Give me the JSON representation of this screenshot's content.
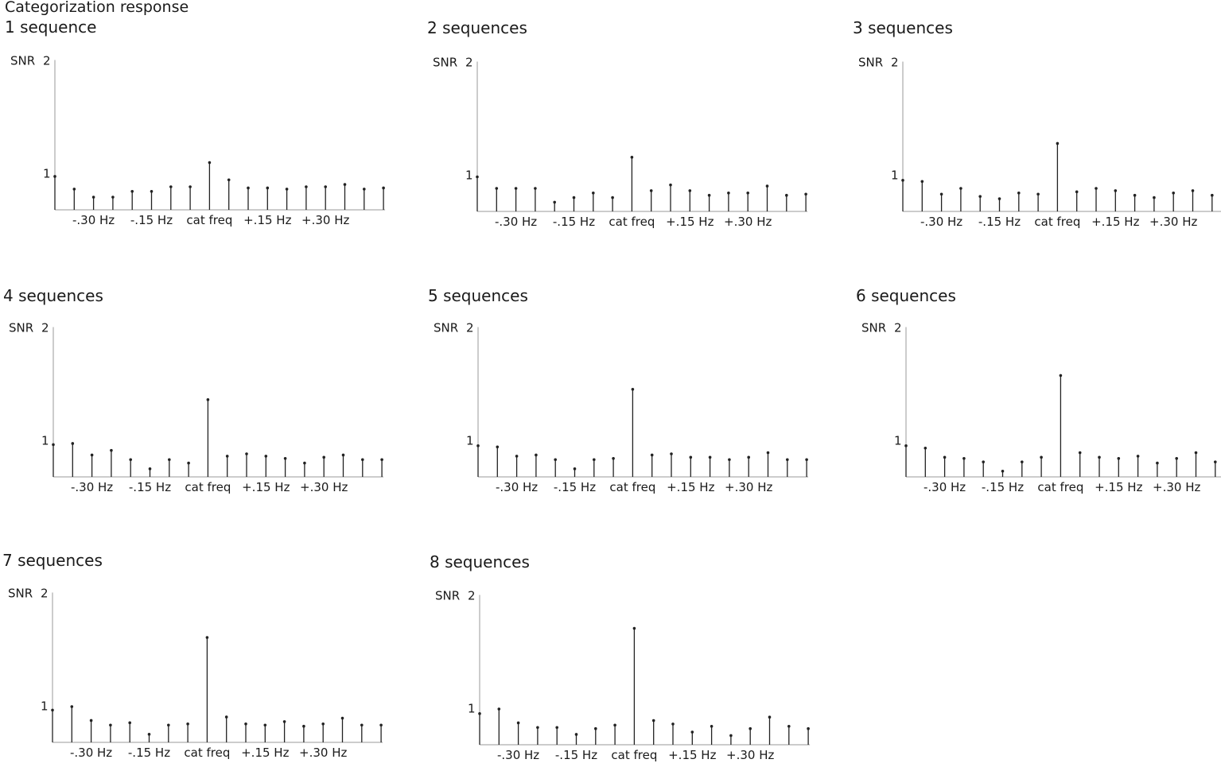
{
  "title": "Categorization response",
  "tick_labels": [
    "-.30 Hz",
    "-.15 Hz",
    "cat freq",
    "+.15 Hz",
    "+.30 Hz"
  ],
  "chart_data": [
    {
      "type": "bar",
      "title": "1 sequence",
      "ylabel": "SNR",
      "y_ticks": [
        "1",
        "2"
      ],
      "ylim": [
        0.7,
        2
      ],
      "values": [
        0.99,
        0.88,
        0.81,
        0.81,
        0.86,
        0.86,
        0.9,
        0.9,
        1.11,
        0.96,
        0.89,
        0.89,
        0.88,
        0.9,
        0.9,
        0.92,
        0.88,
        0.89
      ]
    },
    {
      "type": "bar",
      "title": "2 sequences",
      "ylabel": "SNR",
      "y_ticks": [
        "1",
        "2"
      ],
      "ylim": [
        0.7,
        2
      ],
      "values": [
        1.0,
        0.9,
        0.9,
        0.9,
        0.78,
        0.82,
        0.86,
        0.82,
        1.17,
        0.88,
        0.93,
        0.88,
        0.84,
        0.86,
        0.86,
        0.92,
        0.84,
        0.85
      ]
    },
    {
      "type": "bar",
      "title": "3 sequences",
      "ylabel": "SNR",
      "y_ticks": [
        "1",
        "2"
      ],
      "ylim": [
        0.7,
        2
      ],
      "values": [
        0.97,
        0.96,
        0.85,
        0.9,
        0.83,
        0.81,
        0.86,
        0.85,
        1.29,
        0.87,
        0.9,
        0.88,
        0.84,
        0.82,
        0.86,
        0.88,
        0.84,
        0.85
      ]
    },
    {
      "type": "bar",
      "title": "4 sequences",
      "ylabel": "SNR",
      "y_ticks": [
        "1",
        "2"
      ],
      "ylim": [
        0.7,
        2
      ],
      "values": [
        0.98,
        0.99,
        0.89,
        0.93,
        0.85,
        0.77,
        0.85,
        0.82,
        1.37,
        0.88,
        0.9,
        0.88,
        0.86,
        0.82,
        0.87,
        0.89,
        0.85,
        0.85
      ]
    },
    {
      "type": "bar",
      "title": "5 sequences",
      "ylabel": "SNR",
      "y_ticks": [
        "1",
        "2"
      ],
      "ylim": [
        0.7,
        2
      ],
      "values": [
        0.97,
        0.96,
        0.88,
        0.89,
        0.85,
        0.77,
        0.85,
        0.86,
        1.46,
        0.89,
        0.9,
        0.87,
        0.87,
        0.85,
        0.87,
        0.91,
        0.85,
        0.85
      ]
    },
    {
      "type": "bar",
      "title": "6 sequences",
      "ylabel": "SNR",
      "y_ticks": [
        "1",
        "2"
      ],
      "ylim": [
        0.7,
        2
      ],
      "values": [
        0.97,
        0.95,
        0.87,
        0.86,
        0.83,
        0.75,
        0.83,
        0.87,
        1.58,
        0.91,
        0.87,
        0.86,
        0.88,
        0.82,
        0.86,
        0.91,
        0.83,
        0.85
      ]
    },
    {
      "type": "bar",
      "title": "7 sequences",
      "ylabel": "SNR",
      "y_ticks": [
        "1",
        "2"
      ],
      "ylim": [
        0.7,
        2
      ],
      "values": [
        0.98,
        1.01,
        0.89,
        0.85,
        0.87,
        0.77,
        0.85,
        0.86,
        1.61,
        0.92,
        0.86,
        0.85,
        0.88,
        0.84,
        0.86,
        0.91,
        0.85,
        0.85
      ]
    },
    {
      "type": "bar",
      "title": "8 sequences",
      "ylabel": "SNR",
      "y_ticks": [
        "1",
        "2"
      ],
      "ylim": [
        0.7,
        2
      ],
      "values": [
        0.97,
        1.01,
        0.89,
        0.85,
        0.85,
        0.79,
        0.84,
        0.87,
        1.71,
        0.91,
        0.88,
        0.81,
        0.86,
        0.78,
        0.84,
        0.94,
        0.86,
        0.84
      ]
    }
  ]
}
